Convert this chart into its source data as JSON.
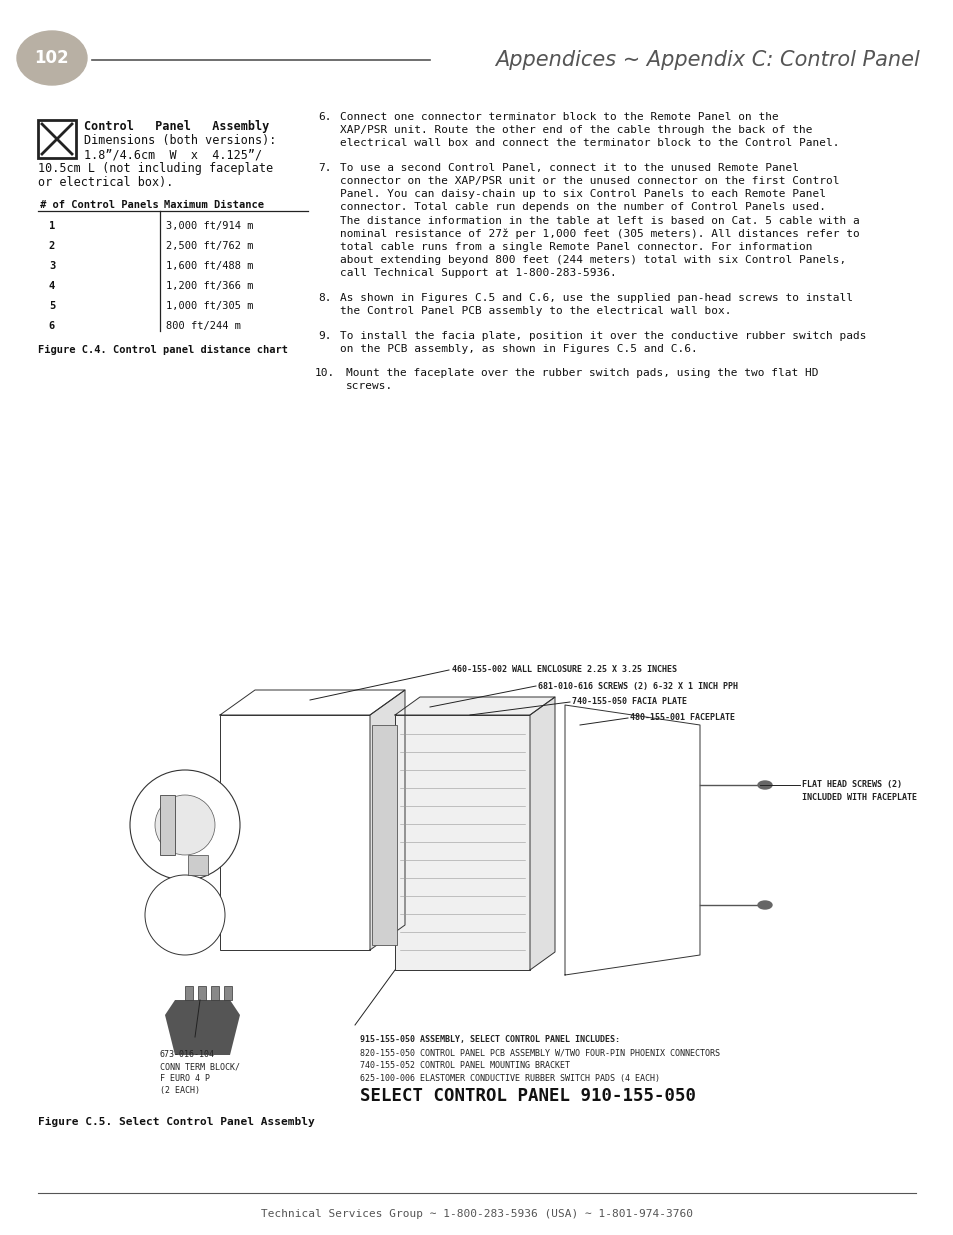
{
  "page_num": "102",
  "header_title": "Appendices ∼ Appendix C: Control Panel",
  "bg_color": "#ffffff",
  "assembly_line1": "Control   Panel   Assembly",
  "assembly_line2": "Dimensions (both versions):",
  "assembly_line3": "1.8”/4.6cm  W  x  4.125”/",
  "assembly_line4": "10.5cm L (not including faceplate",
  "assembly_line5": "or electrical box).",
  "table_headers": [
    "# of Control Panels",
    "Maximum Distance"
  ],
  "table_rows": [
    [
      "1",
      "3,000 ft/914 m"
    ],
    [
      "2",
      "2,500 ft/762 m"
    ],
    [
      "3",
      "1,600 ft/488 m"
    ],
    [
      "4",
      "1,200 ft/366 m"
    ],
    [
      "5",
      "1,000 ft/305 m"
    ],
    [
      "6",
      "800 ft/244 m"
    ]
  ],
  "fig_c4": "Figure C.4. Control panel distance chart",
  "item6": "Connect one connector terminator block to the Remote Panel on the\nXAP/PSR unit. Route the other end of the cable through the back of the\nelectrical wall box and connect the terminator block to the Control Panel.",
  "item7": "To use a second Control Panel, connect it to the unused Remote Panel\nconnector on the XAP/PSR unit or the unused connector on the first Control\nPanel. You can daisy-chain up to six Control Panels to each Remote Panel\nconnector. Total cable run depends on the number of Control Panels used.\nThe distance information in the table at left is based on Cat. 5 cable with a\nnominal resistance of 27ž per 1,000 feet (305 meters). All distances refer to\ntotal cable runs from a single Remote Panel connector. For information\nabout extending beyond 800 feet (244 meters) total with six Control Panels,\ncall Technical Support at 1-800-283-5936.",
  "item8": "As shown in Figures C.5 and C.6, use the supplied pan-head screws to install\nthe Control Panel PCB assembly to the electrical wall box.",
  "item9": "To install the facia plate, position it over the conductive rubber switch pads\non the PCB assembly, as shown in Figures C.5 and C.6.",
  "item10": "Mount the faceplate over the rubber switch pads, using the two flat HD\nscrews.",
  "diag_label1": "460-155-002 WALL ENCLOSURE 2.25 X 3.25 INCHES",
  "diag_label2": "681-010-616 SCREWS (2) 6-32 X 1 INCH PPH",
  "diag_label3": "740-155-050 FACIA PLATE",
  "diag_label4": "480-155-001 FACEPLATE",
  "diag_label5a": "FLAT HEAD SCREWS (2)",
  "diag_label5b": "INCLUDED WITH FACEPLATE",
  "diag_label6a": "915-155-050 ASSEMBLY, SELECT CONTROL PANEL INCLUDES:",
  "diag_label6b": "820-155-050 CONTROL PANEL PCB ASSEMBLY W/TWO FOUR-PIN PHOENIX CONNECTORS",
  "diag_label6c": "740-155-052 CONTROL PANEL MOUNTING BRACKET",
  "diag_label6d": "625-100-006 ELASTOMER CONDUCTIVE RUBBER SWITCH PADS (4 EACH)",
  "diag_label7a": "673-016-104",
  "diag_label7b": "CONN TERM BLOCK/",
  "diag_label7c": "F EURO 4 P",
  "diag_label7d": "(2 EACH)",
  "select_panel_title": "SELECT CONTROL PANEL 910-155-050",
  "fig_c5": "Figure C.5. Select Control Panel Assembly",
  "footer": "Technical Services Group ∼ 1-800-283-5936 (USA) ∼ 1-801-974-3760"
}
